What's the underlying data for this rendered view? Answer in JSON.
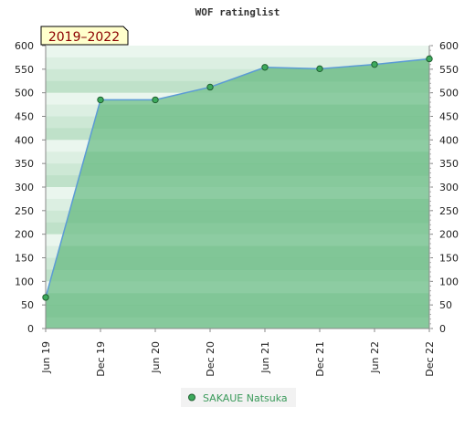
{
  "chart_data": {
    "type": "area",
    "title": "WOF ratinglist",
    "period_badge": "2019–2022",
    "x": [
      "Jun 19",
      "Dec 19",
      "Jun 20",
      "Dec 20",
      "Jun 21",
      "Dec 21",
      "Jun 22",
      "Dec 22"
    ],
    "series": [
      {
        "name": "SAKAUE Natsuka",
        "values": [
          66,
          485,
          485,
          512,
          554,
          551,
          560,
          572
        ]
      }
    ],
    "ylim": [
      0,
      600
    ],
    "yticks": [
      0,
      50,
      100,
      150,
      200,
      250,
      300,
      350,
      400,
      450,
      500,
      550,
      600
    ],
    "right_axis": true,
    "legend_position": "bottom-center",
    "colors": {
      "line": "#5b9bd5",
      "area": "#7cc494",
      "marker": "#3daa5c",
      "badge_bg": "#ffffcc"
    }
  }
}
